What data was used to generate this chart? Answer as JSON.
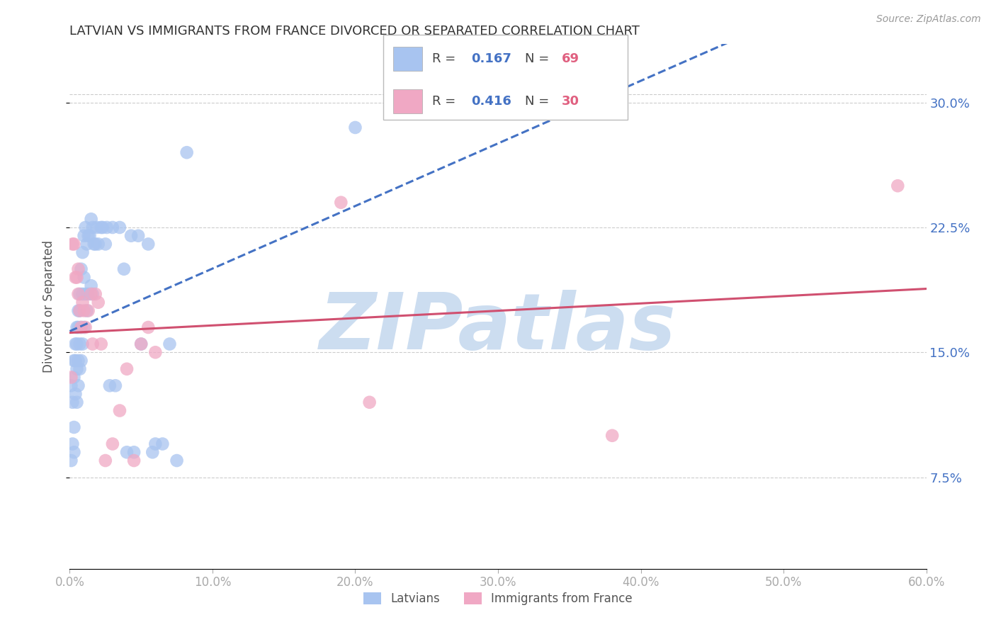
{
  "title": "LATVIAN VS IMMIGRANTS FROM FRANCE DIVORCED OR SEPARATED CORRELATION CHART",
  "source": "Source: ZipAtlas.com",
  "ylabel": "Divorced or Separated",
  "xlim": [
    0.0,
    0.6
  ],
  "ylim": [
    0.02,
    0.335
  ],
  "x_tick_vals": [
    0.0,
    0.1,
    0.2,
    0.3,
    0.4,
    0.5,
    0.6
  ],
  "x_tick_labels": [
    "0.0%",
    "10.0%",
    "20.0%",
    "30.0%",
    "40.0%",
    "50.0%",
    "60.0%"
  ],
  "y_tick_vals": [
    0.075,
    0.15,
    0.225,
    0.3
  ],
  "y_tick_labels": [
    "7.5%",
    "15.0%",
    "22.5%",
    "30.0%"
  ],
  "latvian_color": "#a8c4f0",
  "france_color": "#f0a8c4",
  "trendline_latvian_color": "#4472c4",
  "trendline_france_color": "#d05070",
  "R_latvian": 0.167,
  "N_latvian": 69,
  "R_france": 0.416,
  "N_france": 30,
  "latvian_x": [
    0.001,
    0.001,
    0.002,
    0.002,
    0.003,
    0.003,
    0.003,
    0.003,
    0.004,
    0.004,
    0.004,
    0.005,
    0.005,
    0.005,
    0.005,
    0.006,
    0.006,
    0.006,
    0.006,
    0.007,
    0.007,
    0.007,
    0.007,
    0.008,
    0.008,
    0.008,
    0.009,
    0.009,
    0.009,
    0.01,
    0.01,
    0.01,
    0.011,
    0.011,
    0.012,
    0.012,
    0.013,
    0.013,
    0.014,
    0.015,
    0.015,
    0.016,
    0.016,
    0.017,
    0.018,
    0.019,
    0.02,
    0.022,
    0.023,
    0.025,
    0.026,
    0.028,
    0.03,
    0.032,
    0.035,
    0.038,
    0.04,
    0.043,
    0.045,
    0.048,
    0.05,
    0.055,
    0.058,
    0.06,
    0.065,
    0.07,
    0.075,
    0.082,
    0.2
  ],
  "latvian_y": [
    0.13,
    0.085,
    0.12,
    0.095,
    0.145,
    0.135,
    0.105,
    0.09,
    0.155,
    0.145,
    0.125,
    0.165,
    0.155,
    0.14,
    0.12,
    0.175,
    0.165,
    0.145,
    0.13,
    0.185,
    0.175,
    0.155,
    0.14,
    0.2,
    0.165,
    0.145,
    0.21,
    0.185,
    0.155,
    0.22,
    0.195,
    0.165,
    0.225,
    0.185,
    0.215,
    0.175,
    0.22,
    0.185,
    0.22,
    0.23,
    0.19,
    0.225,
    0.185,
    0.215,
    0.215,
    0.225,
    0.215,
    0.225,
    0.225,
    0.215,
    0.225,
    0.13,
    0.225,
    0.13,
    0.225,
    0.2,
    0.09,
    0.22,
    0.09,
    0.22,
    0.155,
    0.215,
    0.09,
    0.095,
    0.095,
    0.155,
    0.085,
    0.27,
    0.285
  ],
  "france_x": [
    0.001,
    0.002,
    0.003,
    0.004,
    0.005,
    0.006,
    0.006,
    0.007,
    0.008,
    0.009,
    0.01,
    0.011,
    0.013,
    0.015,
    0.016,
    0.018,
    0.02,
    0.022,
    0.025,
    0.03,
    0.035,
    0.04,
    0.045,
    0.05,
    0.055,
    0.06,
    0.19,
    0.21,
    0.38,
    0.58
  ],
  "france_y": [
    0.135,
    0.215,
    0.215,
    0.195,
    0.195,
    0.2,
    0.185,
    0.175,
    0.165,
    0.18,
    0.175,
    0.165,
    0.175,
    0.185,
    0.155,
    0.185,
    0.18,
    0.155,
    0.085,
    0.095,
    0.115,
    0.14,
    0.085,
    0.155,
    0.165,
    0.15,
    0.24,
    0.12,
    0.1,
    0.25
  ],
  "watermark_text": "ZIPatlas",
  "watermark_color": "#ccddf0",
  "background_color": "#ffffff",
  "grid_color": "#cccccc",
  "legend_label_latvian": "Latvians",
  "legend_label_france": "Immigrants from France"
}
